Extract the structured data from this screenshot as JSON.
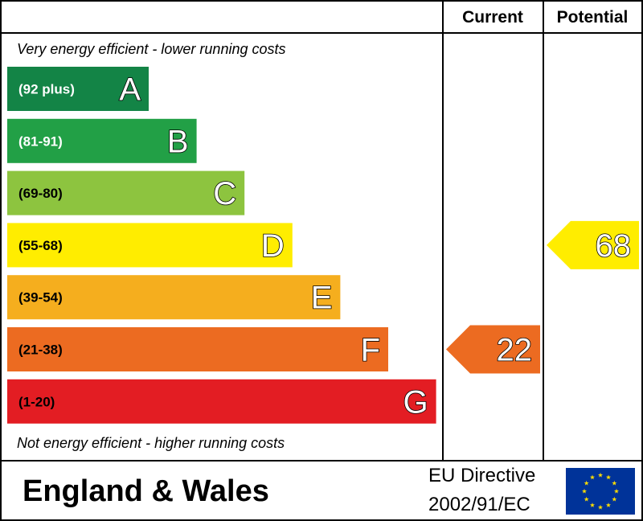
{
  "chart_data": {
    "type": "bar",
    "headers": {
      "current": "Current",
      "potential": "Potential"
    },
    "top_note": "Very energy efficient - lower running costs",
    "bottom_note": "Not energy efficient - higher running costs",
    "bands": [
      {
        "letter": "A",
        "range": "(92 plus)",
        "color": "#138446",
        "text_color": "#ffffff"
      },
      {
        "letter": "B",
        "range": "(81-91)",
        "color": "#22a046",
        "text_color": "#ffffff"
      },
      {
        "letter": "C",
        "range": "(69-80)",
        "color": "#8dc43f",
        "text_color": "#000000"
      },
      {
        "letter": "D",
        "range": "(55-68)",
        "color": "#ffed00",
        "text_color": "#000000"
      },
      {
        "letter": "E",
        "range": "(39-54)",
        "color": "#f5ae1e",
        "text_color": "#000000"
      },
      {
        "letter": "F",
        "range": "(21-38)",
        "color": "#ec6b21",
        "text_color": "#000000"
      },
      {
        "letter": "G",
        "range": "(1-20)",
        "color": "#e31d23",
        "text_color": "#000000"
      }
    ],
    "current": {
      "value": 22,
      "band": "F",
      "color": "#ec6b21"
    },
    "potential": {
      "value": 68,
      "band": "D",
      "color": "#ffed00"
    }
  },
  "footer": {
    "region": "England & Wales",
    "directive_line1": "EU Directive",
    "directive_line2": "2002/91/EC",
    "flag_icon": "eu-flag-icon",
    "flag_color": "#003399",
    "star_color": "#ffdd00"
  }
}
